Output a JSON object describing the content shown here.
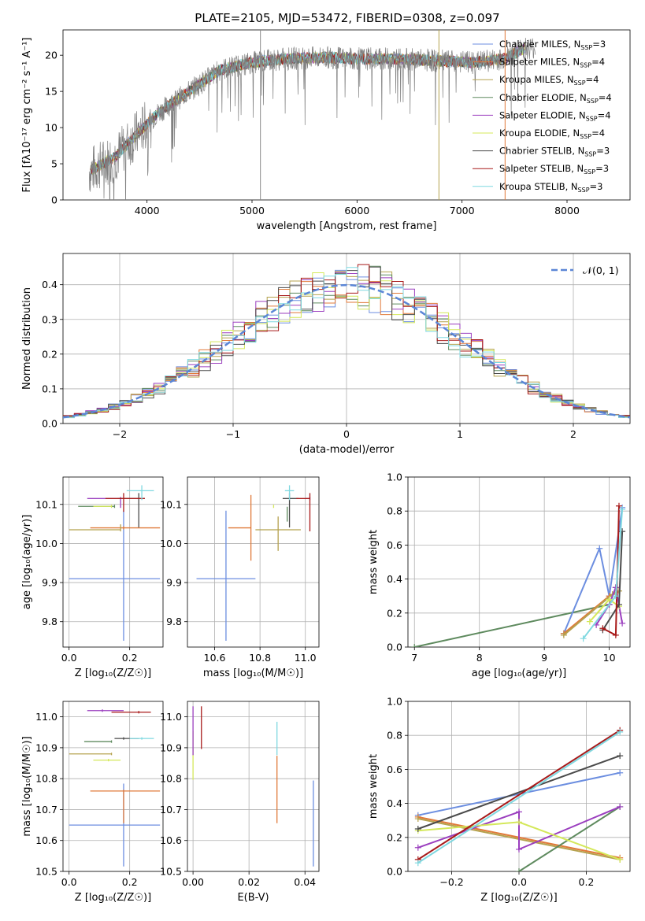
{
  "title": "PLATE=2105, MJD=53472, FIBERID=0308, z=0.097",
  "models": [
    {
      "name": "Chabrier MILES",
      "color": "#6c8ee0",
      "nssp": "3"
    },
    {
      "name": "Salpeter MILES",
      "color": "#e07a3a",
      "nssp": "4"
    },
    {
      "name": "Kroupa MILES",
      "color": "#b5a24e",
      "nssp": "4"
    },
    {
      "name": "Chabrier ELODIE",
      "color": "#5e8a5e",
      "nssp": "4"
    },
    {
      "name": "Salpeter ELODIE",
      "color": "#9b3fbf",
      "nssp": "4"
    },
    {
      "name": "Kroupa ELODIE",
      "color": "#d4e85a",
      "nssp": "4"
    },
    {
      "name": "Chabrier STELIB",
      "color": "#4a4a4a",
      "nssp": "3"
    },
    {
      "name": "Salpeter STELIB",
      "color": "#a81a1a",
      "nssp": "3"
    },
    {
      "name": "Kroupa STELIB",
      "color": "#7fd8e0",
      "nssp": "3"
    }
  ],
  "chart_data": [
    {
      "id": "spectrum",
      "type": "line",
      "xlabel": "wavelength [Angstrom, rest frame]",
      "ylabel": "Flux [fλ10⁻¹⁷ erg cm⁻² s⁻¹ A⁻¹]",
      "xlim": [
        3200,
        8600
      ],
      "ylim": [
        0,
        23.5
      ],
      "xticks": [
        4000,
        5000,
        6000,
        7000,
        8000
      ],
      "yticks": [
        0,
        5,
        10,
        15,
        20
      ],
      "legend": "top-right",
      "grid": false,
      "data_series_color": "#808080",
      "continuum": [
        [
          3450,
          4
        ],
        [
          3700,
          6
        ],
        [
          3900,
          9
        ],
        [
          4100,
          12
        ],
        [
          4400,
          15
        ],
        [
          4700,
          18
        ],
        [
          5000,
          19
        ],
        [
          5300,
          19.5
        ],
        [
          5700,
          19.7
        ],
        [
          6000,
          19.5
        ],
        [
          6400,
          19.5
        ],
        [
          6800,
          19.2
        ],
        [
          7100,
          19
        ],
        [
          7400,
          19.5
        ],
        [
          7600,
          21
        ]
      ],
      "spikes": [
        [
          5080,
          23.5
        ],
        [
          6780,
          23.5
        ],
        [
          7410,
          23.5
        ]
      ]
    },
    {
      "id": "residuals",
      "type": "histogram",
      "xlabel": "(data-model)/error",
      "ylabel": "Normed distribution",
      "xlim": [
        -2.5,
        2.5
      ],
      "ylim": [
        0,
        0.49
      ],
      "xticks": [
        -2,
        -1,
        0,
        1,
        2
      ],
      "yticks": [
        0.0,
        0.1,
        0.2,
        0.3,
        0.4
      ],
      "legend": "top-right",
      "legend_label": "𝒩(0, 1)",
      "grid": true,
      "gaussian": {
        "mean": 0,
        "sigma": 1,
        "color": "#5b86d6"
      }
    },
    {
      "id": "age-vs-Z",
      "type": "scatter",
      "xlabel": "Z [log₁₀(Z/Z☉)]",
      "ylabel": "age  [log₁₀(age/yr)]",
      "xlim": [
        -0.02,
        0.31
      ],
      "ylim": [
        9.735,
        10.17
      ],
      "xticks": [
        0.0,
        0.2
      ],
      "yticks": [
        9.8,
        9.9,
        10.0,
        10.1
      ],
      "grid": true,
      "points": [
        {
          "m": 0,
          "x": 0.18,
          "y": 9.91,
          "xerr": [
            0.18,
            0.12
          ],
          "yerr": [
            0.155,
            0.17
          ]
        },
        {
          "m": 1,
          "x": 0.18,
          "y": 10.04,
          "xerr": [
            0.11,
            0.12
          ],
          "yerr": [
            0.0,
            0.0
          ]
        },
        {
          "m": 3,
          "x": 0.15,
          "y": 10.095,
          "xerr": [
            0.12,
            0.0
          ],
          "yerr": [
            0.0,
            0.0
          ]
        },
        {
          "m": 4,
          "x": 0.17,
          "y": 10.115,
          "xerr": [
            0.11,
            0.06
          ],
          "yerr": [
            0.02,
            0.0
          ]
        },
        {
          "m": 5,
          "x": 0.14,
          "y": 10.095,
          "xerr": [
            0.06,
            0.0
          ],
          "yerr": [
            0.0,
            0.0
          ]
        },
        {
          "m": 6,
          "x": 0.23,
          "y": 10.115,
          "xerr": [
            0.07,
            0.02
          ],
          "yerr": [
            0.07,
            0.01
          ]
        },
        {
          "m": 7,
          "x": 0.18,
          "y": 10.115,
          "xerr": [
            0.06,
            0.07
          ],
          "yerr": [
            0.03,
            0.01
          ]
        },
        {
          "m": 8,
          "x": 0.24,
          "y": 10.135,
          "xerr": [
            0.05,
            0.04
          ],
          "yerr": [
            0.02,
            0.01
          ]
        },
        {
          "m": 2,
          "x": 0.17,
          "y": 10.035,
          "xerr": [
            0.17,
            0.0
          ],
          "yerr": [
            0.0,
            0.01
          ]
        }
      ]
    },
    {
      "id": "age-vs-mass",
      "type": "scatter",
      "xlabel": "mass [log₁₀(M/M☉)]",
      "ylabel": "",
      "xlim": [
        10.48,
        11.06
      ],
      "ylim": [
        9.735,
        10.17
      ],
      "xticks": [
        10.6,
        10.8,
        11.0
      ],
      "yticks": [
        9.8,
        9.9,
        10.0,
        10.1
      ],
      "grid": true,
      "points": [
        {
          "m": 0,
          "x": 10.65,
          "y": 9.91,
          "xerr": [
            0.13,
            0.13
          ],
          "yerr": [
            0.155,
            0.17
          ]
        },
        {
          "m": 1,
          "x": 10.76,
          "y": 10.04,
          "xerr": [
            0.1,
            0.0
          ],
          "yerr": [
            0.08,
            0.08
          ]
        },
        {
          "m": 2,
          "x": 10.88,
          "y": 10.035,
          "xerr": [
            0.1,
            0.1
          ],
          "yerr": [
            0.05,
            0.03
          ]
        },
        {
          "m": 3,
          "x": 10.92,
          "y": 10.09,
          "xerr": [
            0.0,
            0.0
          ],
          "yerr": [
            0.03,
            0.0
          ]
        },
        {
          "m": 4,
          "x": 11.02,
          "y": 10.115,
          "xerr": [
            0.02,
            0.0
          ],
          "yerr": [
            0.0,
            0.0
          ]
        },
        {
          "m": 5,
          "x": 10.86,
          "y": 10.095,
          "xerr": [
            0.0,
            0.0
          ],
          "yerr": [
            0.0,
            0.0
          ]
        },
        {
          "m": 6,
          "x": 10.93,
          "y": 10.115,
          "xerr": [
            0.03,
            0.04
          ],
          "yerr": [
            0.07,
            0.01
          ]
        },
        {
          "m": 7,
          "x": 11.02,
          "y": 10.115,
          "xerr": [
            0.06,
            0.0
          ],
          "yerr": [
            0.08,
            0.01
          ]
        },
        {
          "m": 8,
          "x": 10.93,
          "y": 10.135,
          "xerr": [
            0.02,
            0.02
          ],
          "yerr": [
            0.02,
            0.01
          ]
        }
      ]
    },
    {
      "id": "weight-vs-age",
      "type": "line",
      "xlabel": "age  [log₁₀(age/yr)]",
      "ylabel": "mass weight",
      "xlim": [
        6.9,
        10.32
      ],
      "ylim": [
        0.0,
        1.0
      ],
      "xticks": [
        7,
        8,
        9,
        10
      ],
      "yticks": [
        0.0,
        0.2,
        0.4,
        0.6,
        0.8,
        1.0
      ],
      "grid": true,
      "series": [
        {
          "m": 3,
          "x": [
            7.0,
            10.0,
            10.1
          ],
          "y": [
            0.0,
            0.25,
            0.35
          ]
        },
        {
          "m": 0,
          "x": [
            9.3,
            9.85,
            10.0,
            10.2
          ],
          "y": [
            0.08,
            0.58,
            0.3,
            0.82
          ]
        },
        {
          "m": 1,
          "x": [
            9.3,
            10.0,
            10.1
          ],
          "y": [
            0.08,
            0.3,
            0.32
          ]
        },
        {
          "m": 2,
          "x": [
            9.3,
            10.05,
            10.15
          ],
          "y": [
            0.07,
            0.31,
            0.33
          ]
        },
        {
          "m": 4,
          "x": [
            9.8,
            10.0,
            10.1,
            10.2
          ],
          "y": [
            0.13,
            0.25,
            0.35,
            0.14
          ]
        },
        {
          "m": 5,
          "x": [
            9.7,
            10.0,
            10.15
          ],
          "y": [
            0.15,
            0.28,
            0.24
          ]
        },
        {
          "m": 6,
          "x": [
            9.9,
            10.15,
            10.2
          ],
          "y": [
            0.1,
            0.25,
            0.68
          ]
        },
        {
          "m": 7,
          "x": [
            9.9,
            10.1,
            10.15
          ],
          "y": [
            0.11,
            0.07,
            0.83
          ]
        },
        {
          "m": 8,
          "x": [
            9.6,
            10.1,
            10.2
          ],
          "y": [
            0.05,
            0.3,
            0.81
          ]
        }
      ]
    },
    {
      "id": "mass-vs-Z",
      "type": "scatter",
      "xlabel": "Z [log₁₀(Z/Z☉)]",
      "ylabel": "mass [log₁₀(M/M☉)]",
      "xlim": [
        -0.02,
        0.31
      ],
      "ylim": [
        10.5,
        11.05
      ],
      "xticks": [
        0.0,
        0.2
      ],
      "yticks": [
        10.5,
        10.6,
        10.7,
        10.8,
        10.9,
        11.0
      ],
      "grid": true,
      "points": [
        {
          "m": 0,
          "x": 0.18,
          "y": 10.65,
          "xerr": [
            0.18,
            0.12
          ],
          "yerr": [
            0.13,
            0.13
          ]
        },
        {
          "m": 1,
          "x": 0.18,
          "y": 10.76,
          "xerr": [
            0.11,
            0.12
          ],
          "yerr": [
            0.1,
            0.0
          ]
        },
        {
          "m": 2,
          "x": 0.14,
          "y": 10.88,
          "xerr": [
            0.14,
            0.0
          ],
          "yerr": [
            0.0,
            0.0
          ]
        },
        {
          "m": 3,
          "x": 0.14,
          "y": 10.92,
          "xerr": [
            0.09,
            0.0
          ],
          "yerr": [
            0.0,
            0.0
          ]
        },
        {
          "m": 4,
          "x": 0.11,
          "y": 11.02,
          "xerr": [
            0.05,
            0.07
          ],
          "yerr": [
            0.0,
            0.0
          ]
        },
        {
          "m": 5,
          "x": 0.13,
          "y": 10.86,
          "xerr": [
            0.05,
            0.04
          ],
          "yerr": [
            0.0,
            0.0
          ]
        },
        {
          "m": 6,
          "x": 0.18,
          "y": 10.93,
          "xerr": [
            0.03,
            0.05
          ],
          "yerr": [
            0.0,
            0.0
          ]
        },
        {
          "m": 7,
          "x": 0.23,
          "y": 11.015,
          "xerr": [
            0.09,
            0.04
          ],
          "yerr": [
            0.0,
            0.0
          ]
        },
        {
          "m": 8,
          "x": 0.24,
          "y": 10.93,
          "xerr": [
            0.04,
            0.04
          ],
          "yerr": [
            0.0,
            0.0
          ]
        }
      ]
    },
    {
      "id": "mass-vs-EBV",
      "type": "scatter",
      "xlabel": "E(B-V)",
      "ylabel": "",
      "xlim": [
        -0.002,
        0.045
      ],
      "ylim": [
        10.5,
        11.05
      ],
      "xticks": [
        0.0,
        0.02,
        0.04
      ],
      "yticks": [
        10.5,
        10.6,
        10.7,
        10.8,
        10.9,
        11.0
      ],
      "grid": true,
      "points": [
        {
          "m": 0,
          "x": 0.043,
          "y": 10.65,
          "xerr": [
            0,
            0
          ],
          "yerr": [
            0.13,
            0.14
          ]
        },
        {
          "m": 1,
          "x": 0.03,
          "y": 10.76,
          "xerr": [
            0,
            0
          ],
          "yerr": [
            0.1,
            0.11
          ]
        },
        {
          "m": 8,
          "x": 0.03,
          "y": 10.88,
          "xerr": [
            0,
            0
          ],
          "yerr": [
            0.0,
            0.1
          ]
        },
        {
          "m": 5,
          "x": 0.0,
          "y": 10.86,
          "xerr": [
            0,
            0
          ],
          "yerr": [
            0.06,
            0.09
          ]
        },
        {
          "m": 4,
          "x": 0.0,
          "y": 10.95,
          "xerr": [
            0,
            0
          ],
          "yerr": [
            0.07,
            0.08
          ]
        },
        {
          "m": 7,
          "x": 0.003,
          "y": 10.95,
          "xerr": [
            0,
            0
          ],
          "yerr": [
            0.05,
            0.08
          ]
        }
      ]
    },
    {
      "id": "weight-vs-Z",
      "type": "line",
      "xlabel": "Z [log₁₀(Z/Z☉)]",
      "ylabel": "mass weight",
      "xlim": [
        -0.33,
        0.33
      ],
      "ylim": [
        0.0,
        1.0
      ],
      "xticks": [
        -0.2,
        0.0,
        0.2
      ],
      "yticks": [
        0.0,
        0.2,
        0.4,
        0.6,
        0.8,
        1.0
      ],
      "grid": true,
      "series": [
        {
          "m": 0,
          "x": [
            -0.3,
            0.3
          ],
          "y": [
            0.33,
            0.58
          ]
        },
        {
          "m": 1,
          "x": [
            -0.3,
            0.3
          ],
          "y": [
            0.32,
            0.08
          ]
        },
        {
          "m": 2,
          "x": [
            -0.3,
            0.3
          ],
          "y": [
            0.31,
            0.07
          ]
        },
        {
          "m": 3,
          "x": [
            0.0,
            0.3
          ],
          "y": [
            0.0,
            0.38
          ]
        },
        {
          "m": 4,
          "x": [
            -0.3,
            0.0,
            0.0,
            0.3
          ],
          "y": [
            0.14,
            0.35,
            0.13,
            0.38
          ]
        },
        {
          "m": 5,
          "x": [
            -0.3,
            0.0,
            0.3
          ],
          "y": [
            0.24,
            0.29,
            0.07
          ]
        },
        {
          "m": 6,
          "x": [
            -0.3,
            0.3
          ],
          "y": [
            0.25,
            0.68
          ]
        },
        {
          "m": 7,
          "x": [
            -0.3,
            0.3
          ],
          "y": [
            0.07,
            0.83
          ]
        },
        {
          "m": 8,
          "x": [
            -0.3,
            0.3
          ],
          "y": [
            0.05,
            0.82
          ]
        }
      ]
    }
  ]
}
